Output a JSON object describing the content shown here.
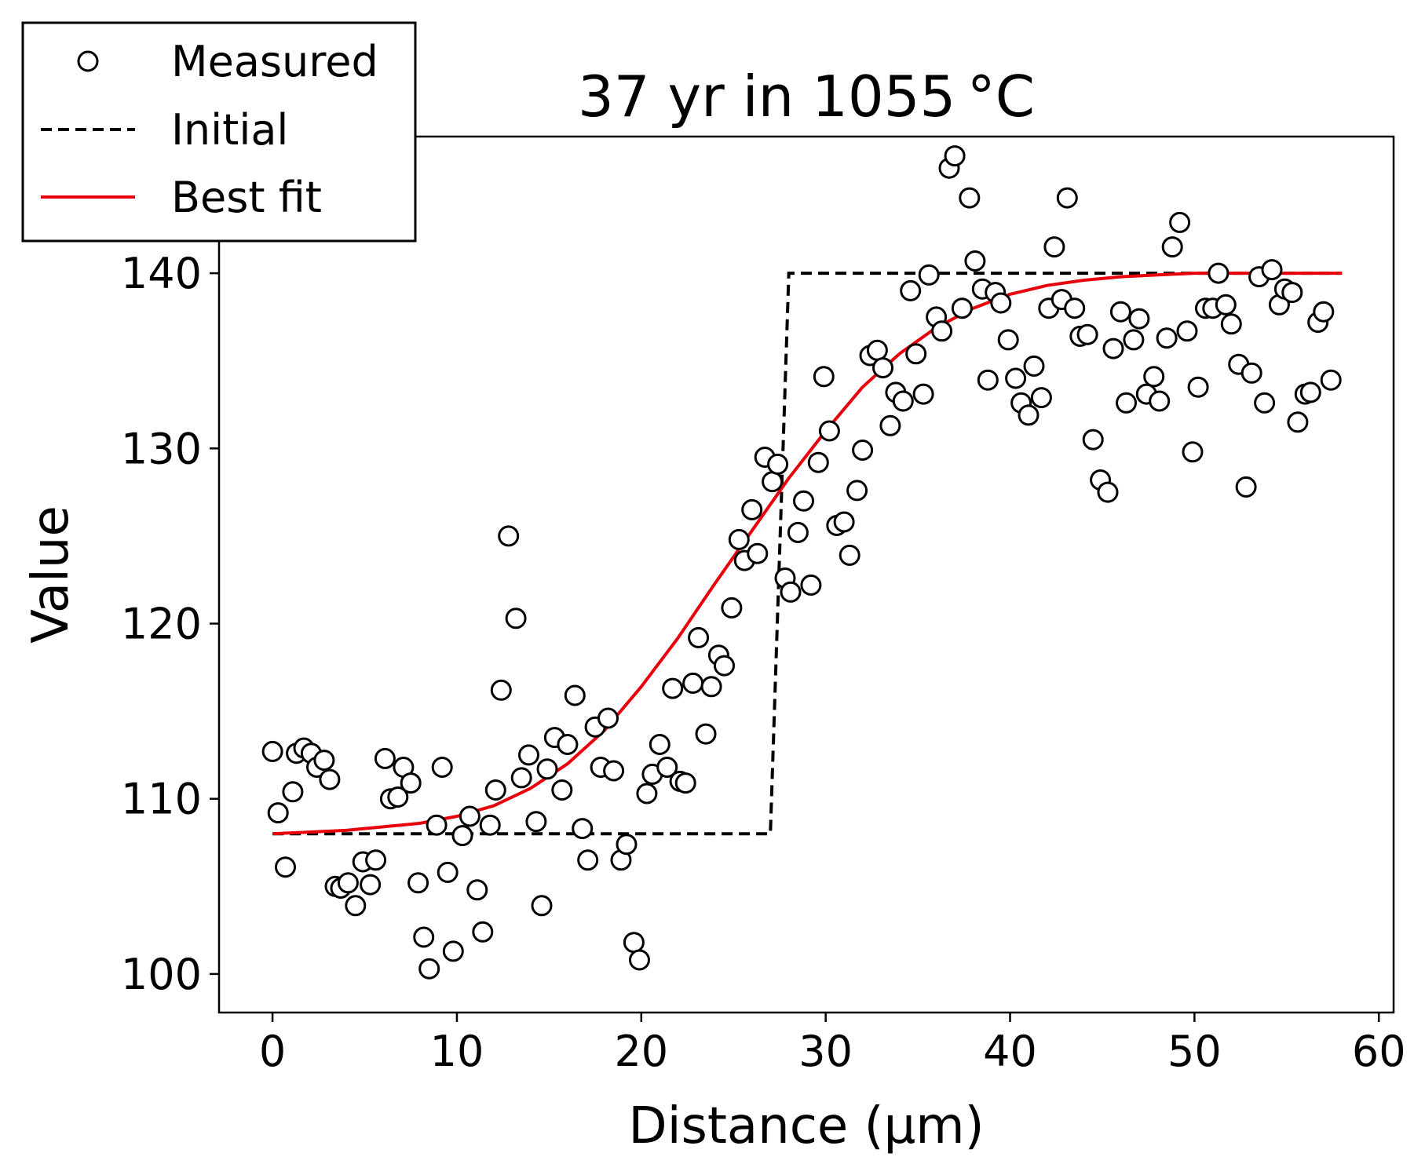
{
  "chart_data": {
    "type": "scatter",
    "title": "37 yr in 1055 °C",
    "xlabel": "Distance (µm)",
    "ylabel": "Value",
    "xlim": [
      -2.9,
      60.8
    ],
    "ylim": [
      97.8,
      147.8
    ],
    "xticks": [
      0,
      10,
      20,
      30,
      40,
      50,
      60
    ],
    "yticks": [
      100,
      110,
      120,
      130,
      140
    ],
    "grid": false,
    "legend": {
      "placement": "top-left",
      "entries": [
        {
          "label": "Measured",
          "style": "open-circle",
          "color": "#000000"
        },
        {
          "label": "Initial",
          "style": "dashed-line",
          "color": "#000000"
        },
        {
          "label": "Best fit",
          "style": "solid-line",
          "color": "#e8000b"
        }
      ]
    },
    "series": [
      {
        "name": "Measured",
        "type": "scatter",
        "marker": "open-circle",
        "color": "#000000",
        "x": [
          0.0,
          0.3,
          0.7,
          1.1,
          1.3,
          1.7,
          2.1,
          2.4,
          2.8,
          3.1,
          3.4,
          3.7,
          4.1,
          4.5,
          4.9,
          5.3,
          5.6,
          6.1,
          6.4,
          6.8,
          7.1,
          7.5,
          7.9,
          8.2,
          8.5,
          8.9,
          9.2,
          9.5,
          9.8,
          10.3,
          10.7,
          11.1,
          11.4,
          11.8,
          12.1,
          12.4,
          12.8,
          13.2,
          13.5,
          13.9,
          14.3,
          14.6,
          14.9,
          15.3,
          15.7,
          16.0,
          16.4,
          16.8,
          17.1,
          17.5,
          17.8,
          18.2,
          18.5,
          18.9,
          19.2,
          19.6,
          19.9,
          20.3,
          20.6,
          21.0,
          21.4,
          21.7,
          22.1,
          22.4,
          22.8,
          23.1,
          23.5,
          23.8,
          24.2,
          24.5,
          24.9,
          25.3,
          25.6,
          26.0,
          26.3,
          26.7,
          27.1,
          27.4,
          27.8,
          28.1,
          28.5,
          28.8,
          29.2,
          29.6,
          29.9,
          30.2,
          30.6,
          31.0,
          31.3,
          31.7,
          32.0,
          32.4,
          32.8,
          33.1,
          33.5,
          33.8,
          34.2,
          34.6,
          34.9,
          35.3,
          35.6,
          36.0,
          36.3,
          36.7,
          37.0,
          37.4,
          37.8,
          38.1,
          38.5,
          38.8,
          39.2,
          39.5,
          39.9,
          40.3,
          40.6,
          41.0,
          41.3,
          41.7,
          42.1,
          42.4,
          42.8,
          43.1,
          43.5,
          43.8,
          44.2,
          44.5,
          44.9,
          45.3,
          45.6,
          46.0,
          46.3,
          46.7,
          47.0,
          47.4,
          47.8,
          48.1,
          48.5,
          48.8,
          49.2,
          49.6,
          49.9,
          50.2,
          50.6,
          51.0,
          51.3,
          51.7,
          52.0,
          52.4,
          52.8,
          53.1,
          53.5,
          53.8,
          54.2,
          54.6,
          54.9,
          55.3,
          55.6,
          56.0,
          56.3,
          56.7,
          57.0,
          57.4
        ],
        "y": [
          112.7,
          109.2,
          106.1,
          110.4,
          112.6,
          112.9,
          112.6,
          111.8,
          112.2,
          111.1,
          105.0,
          104.9,
          105.2,
          103.9,
          106.4,
          105.1,
          106.5,
          112.3,
          110.0,
          110.1,
          111.8,
          110.9,
          105.2,
          102.1,
          100.3,
          108.5,
          111.8,
          105.8,
          101.3,
          107.9,
          109.0,
          104.8,
          102.4,
          108.5,
          110.5,
          116.2,
          125.0,
          120.3,
          111.2,
          112.5,
          108.7,
          103.9,
          111.7,
          113.5,
          110.5,
          113.1,
          115.9,
          108.3,
          106.5,
          114.1,
          111.8,
          114.6,
          111.6,
          106.5,
          107.4,
          101.8,
          100.8,
          110.3,
          111.4,
          113.1,
          111.8,
          116.3,
          111.0,
          110.9,
          116.6,
          119.2,
          113.7,
          116.4,
          118.2,
          117.6,
          120.9,
          124.8,
          123.6,
          126.5,
          124.0,
          129.5,
          128.1,
          129.1,
          122.6,
          121.8,
          125.2,
          127.0,
          122.2,
          129.2,
          134.1,
          131.0,
          125.6,
          125.8,
          123.9,
          127.6,
          129.9,
          135.3,
          135.6,
          134.6,
          131.3,
          133.2,
          132.7,
          139.0,
          135.4,
          133.1,
          139.9,
          137.5,
          136.7,
          146.0,
          146.7,
          138.0,
          144.3,
          140.7,
          139.1,
          133.9,
          138.9,
          138.3,
          136.2,
          134.0,
          132.6,
          131.9,
          134.7,
          132.9,
          138.0,
          141.5,
          138.5,
          144.3,
          138.0,
          136.4,
          136.5,
          130.5,
          128.2,
          127.5,
          135.7,
          137.8,
          132.6,
          136.2,
          137.4,
          133.1,
          134.1,
          132.7,
          136.3,
          141.5,
          142.9,
          136.7,
          129.8,
          133.5,
          138.0,
          138.0,
          140.0,
          138.2,
          137.1,
          134.8,
          127.8,
          134.3,
          139.8,
          132.6,
          140.2,
          138.2,
          139.1,
          138.9,
          131.5,
          133.1,
          133.2,
          137.2,
          137.8,
          133.9
        ]
      },
      {
        "name": "Initial",
        "type": "line",
        "style": "dashed",
        "color": "#000000",
        "x": [
          0,
          27.0,
          28.0,
          58.0
        ],
        "y": [
          108.0,
          108.0,
          140.0,
          140.0
        ]
      },
      {
        "name": "Best fit",
        "type": "line",
        "style": "solid",
        "color": "#e8000b",
        "x": [
          0,
          2,
          4,
          6,
          8,
          10,
          12,
          14,
          16,
          18,
          20,
          22,
          24,
          26,
          28,
          30,
          32,
          34,
          36,
          38,
          40,
          42,
          44,
          46,
          48,
          50,
          52,
          54,
          56,
          58
        ],
        "y": [
          108.0,
          108.1,
          108.2,
          108.4,
          108.6,
          109.0,
          109.6,
          110.6,
          112.0,
          113.9,
          116.4,
          119.2,
          122.3,
          125.3,
          128.3,
          131.0,
          133.5,
          135.4,
          136.9,
          138.0,
          138.8,
          139.3,
          139.6,
          139.8,
          139.9,
          140.0,
          140.0,
          140.0,
          140.0,
          140.0
        ]
      }
    ]
  }
}
